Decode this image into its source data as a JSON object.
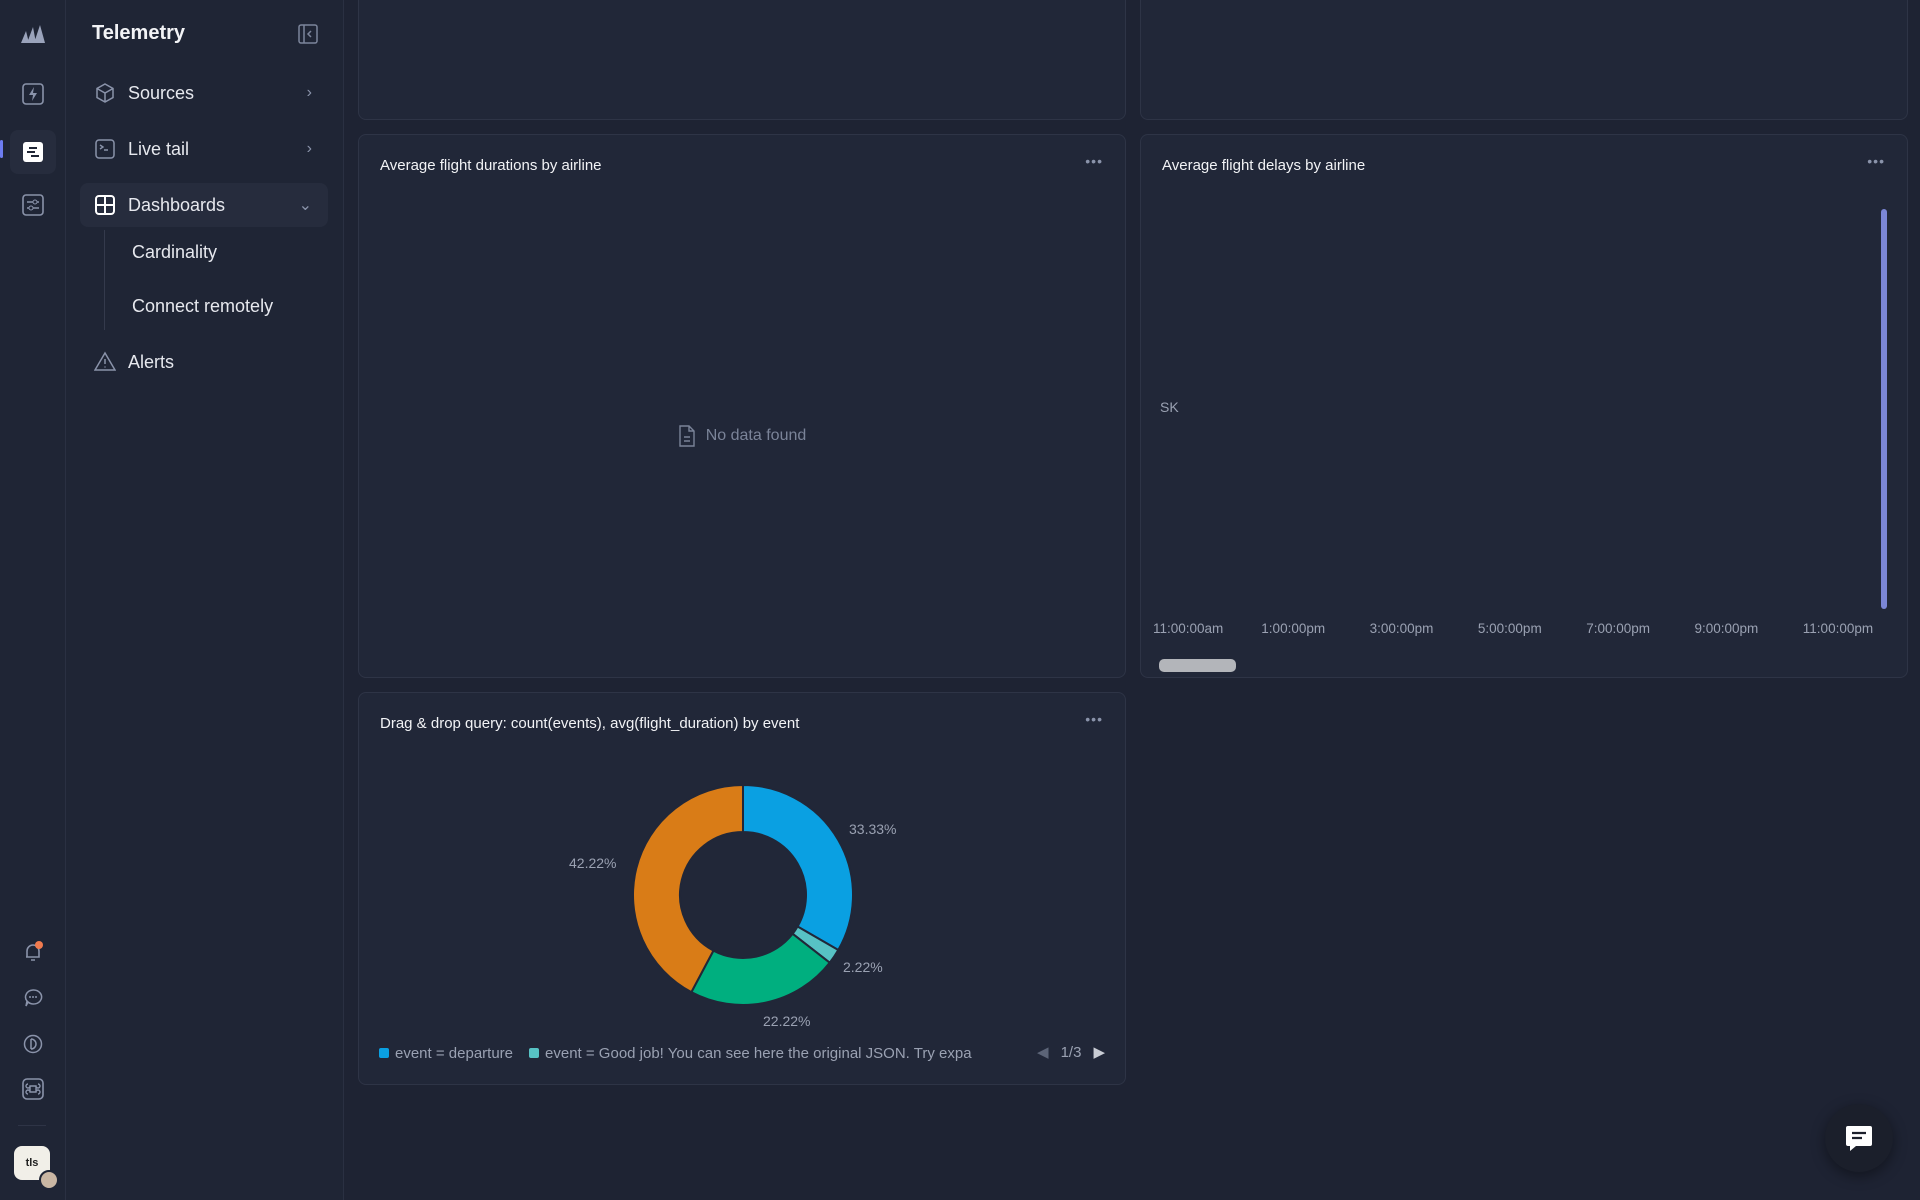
{
  "sidebar": {
    "title": "Telemetry",
    "items": [
      {
        "label": "Sources",
        "icon": "cube-icon"
      },
      {
        "label": "Live tail",
        "icon": "terminal-icon"
      },
      {
        "label": "Dashboards",
        "icon": "dashboard-icon",
        "expanded": true
      },
      {
        "label": "Alerts",
        "icon": "alert-triangle-icon"
      }
    ],
    "subitems": [
      {
        "label": "Cardinality"
      },
      {
        "label": "Connect remotely"
      }
    ]
  },
  "rail": {
    "icons": [
      "logo-icon",
      "bolt-icon",
      "telemetry-icon",
      "settings-sliders-icon",
      "bell-icon",
      "chat-bubble-icon",
      "discord-icon",
      "command-icon"
    ],
    "notification_color": "#f07b4f"
  },
  "cards": {
    "durations": {
      "title": "Average flight durations by airline",
      "empty_text": "No data found"
    },
    "delays": {
      "title": "Average flight delays by airline"
    },
    "query": {
      "title": "Drag & drop query: count(events), avg(flight_duration) by event",
      "pager": "1/3"
    }
  },
  "chart_data": [
    {
      "type": "line",
      "title": "Average flight delays by airline",
      "series_labels": [
        "SK"
      ],
      "x_ticks": [
        "11:00:00am",
        "1:00:00pm",
        "3:00:00pm",
        "5:00:00pm",
        "7:00:00pm",
        "9:00:00pm",
        "11:00:00pm"
      ],
      "accent": "#7b86d6"
    },
    {
      "type": "pie",
      "title": "Drag & drop query: count(events), avg(flight_duration) by event",
      "slices": [
        {
          "label": "event = departure",
          "value": 33.33,
          "display": "33.33%",
          "color": "#0aa0e2"
        },
        {
          "label": "event = Good job! You can see here the original JSON. Try expa",
          "value": 2.22,
          "display": "2.22%",
          "color": "#57c2c4"
        },
        {
          "value": 22.22,
          "display": "22.22%",
          "color": "#00af7f"
        },
        {
          "value": 42.22,
          "display": "42.22%",
          "color": "#d97c17"
        }
      ]
    }
  ]
}
